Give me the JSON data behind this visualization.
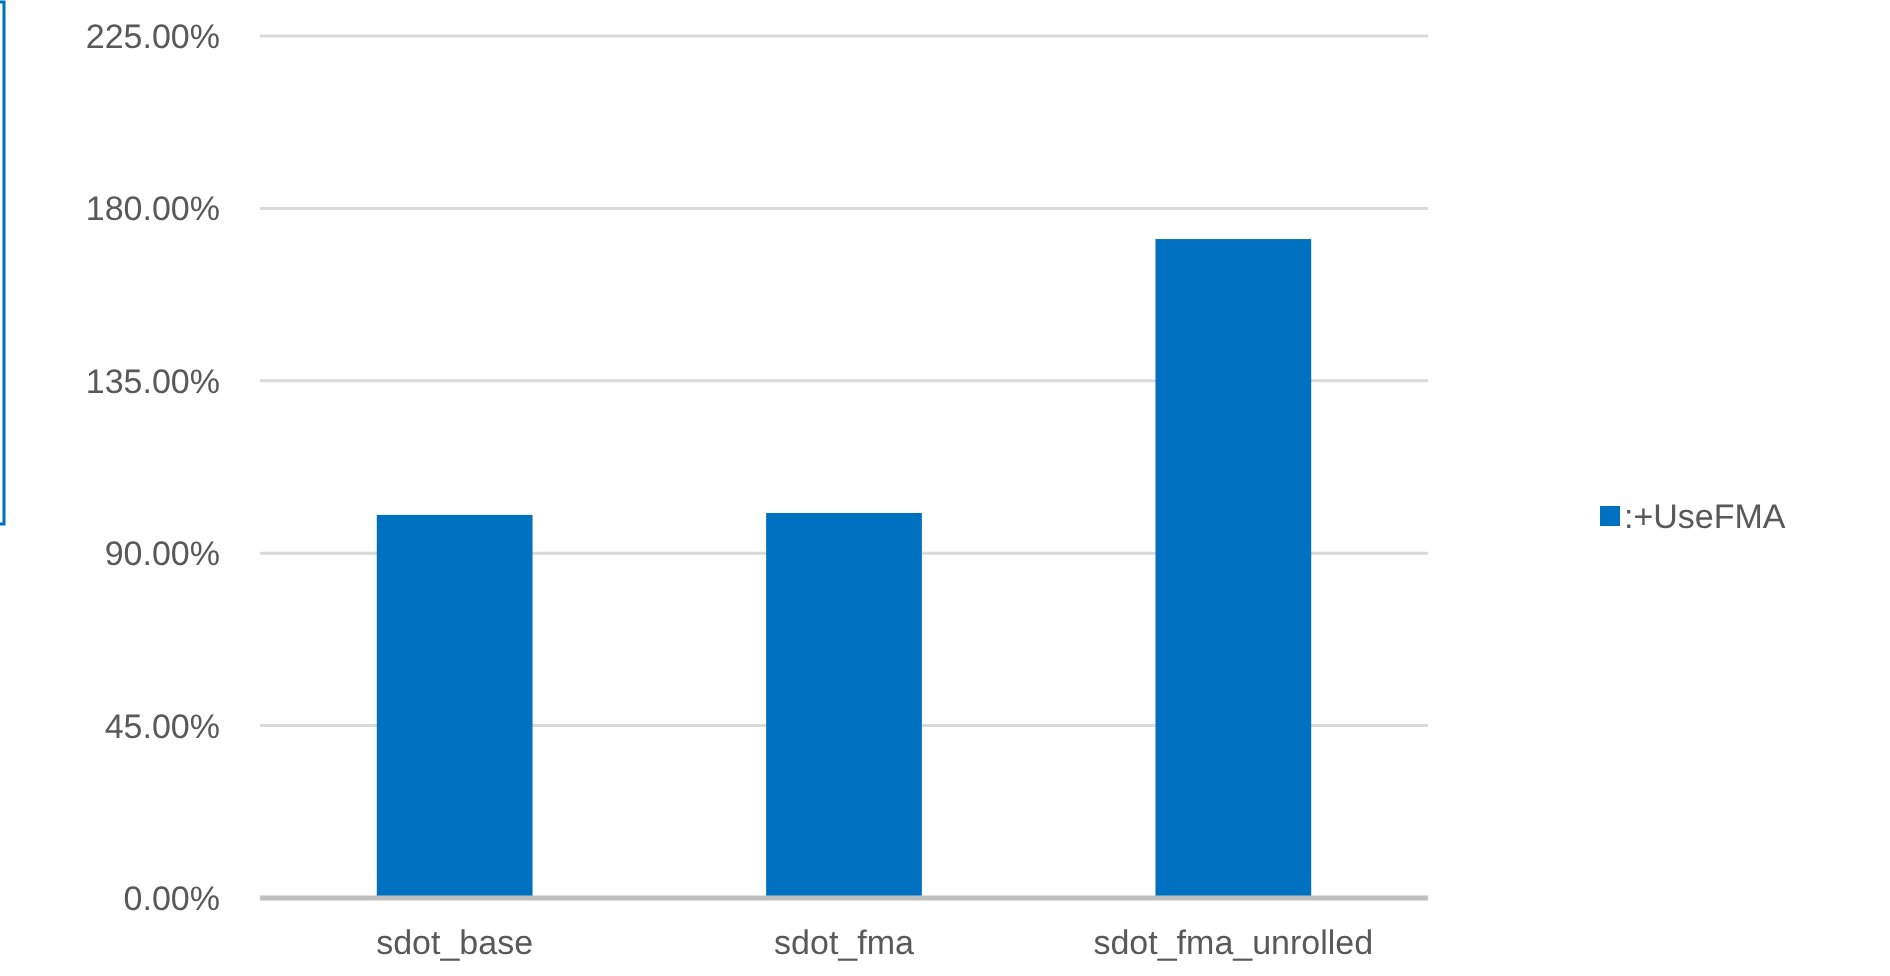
{
  "chart_data": {
    "type": "bar",
    "categories": [
      "sdot_base",
      "sdot_fma",
      "sdot_fma_unrolled"
    ],
    "series": [
      {
        "name": ":+UseFMA",
        "color": "#0070c0",
        "values": [
          100,
          100.5,
          172
        ]
      }
    ],
    "ylim": [
      0,
      225
    ],
    "yticks": [
      {
        "value": 0,
        "label": "0.00%"
      },
      {
        "value": 45,
        "label": "45.00%"
      },
      {
        "value": 90,
        "label": "90.00%"
      },
      {
        "value": 135,
        "label": "135.00%"
      },
      {
        "value": 180,
        "label": "180.00%"
      },
      {
        "value": 225,
        "label": "225.00%"
      }
    ],
    "grid": "y",
    "legend": "right"
  }
}
